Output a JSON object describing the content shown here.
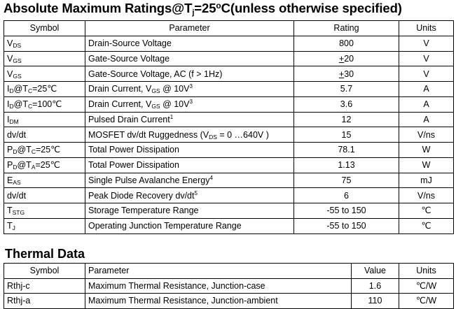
{
  "section1": {
    "title_pre": "Absolute Maximum Ratings@T",
    "title_sub": "j",
    "title_mid": "=25",
    "title_sup": "o",
    "title_post": "C(unless otherwise specified)",
    "headers": {
      "symbol": "Symbol",
      "parameter": "Parameter",
      "rating": "Rating",
      "units": "Units"
    },
    "rows": [
      {
        "sym": "V",
        "sym_sub": "DS",
        "sym_post": "",
        "param": "Drain-Source Voltage",
        "rating": "800",
        "unit": "V"
      },
      {
        "sym": "V",
        "sym_sub": "GS",
        "sym_post": "",
        "param": "Gate-Source Voltage",
        "rating_prefix": "+",
        "rating": "20",
        "unit": "V"
      },
      {
        "sym": "V",
        "sym_sub": "GS",
        "sym_post": "",
        "param": "Gate-Source Voltage, AC (f > 1Hz)",
        "rating_prefix": "+",
        "rating": "30",
        "unit": "V"
      },
      {
        "sym": "I",
        "sym_sub": "D",
        "sym_mid": "@T",
        "sym_sub2": "C",
        "sym_post": "=25℃",
        "param_pre": "Drain Current, V",
        "param_sub": "GS",
        "param_post": " @ 10V",
        "param_sup": "3",
        "rating": "5.7",
        "unit": "A"
      },
      {
        "sym": "I",
        "sym_sub": "D",
        "sym_mid": "@T",
        "sym_sub2": "C",
        "sym_post": "=100℃",
        "param_pre": "Drain Current, V",
        "param_sub": "GS",
        "param_post": " @ 10V",
        "param_sup": "3",
        "rating": "3.6",
        "unit": "A"
      },
      {
        "sym": "I",
        "sym_sub": "DM",
        "sym_post": "",
        "param": "Pulsed Drain Current",
        "param_sup": "1",
        "rating": "12",
        "unit": "A"
      },
      {
        "sym": "dv/dt",
        "sym_sub": "",
        "sym_post": "",
        "param_pre": "MOSFET dv/dt Ruggedness (V",
        "param_sub": "DS",
        "param_post": " = 0 …640V )",
        "rating": "15",
        "unit": "V/ns"
      },
      {
        "sym": "P",
        "sym_sub": "D",
        "sym_mid": "@T",
        "sym_sub2": "C",
        "sym_post": "=25℃",
        "param": "Total Power Dissipation",
        "rating": "78.1",
        "unit": "W"
      },
      {
        "sym": "P",
        "sym_sub": "D",
        "sym_mid": "@T",
        "sym_sub2": "A",
        "sym_post": "=25℃",
        "param": "Total Power Dissipation",
        "rating": "1.13",
        "unit": "W"
      },
      {
        "sym": "E",
        "sym_sub": "AS",
        "sym_post": "",
        "param": "Single Pulse Avalanche Energy",
        "param_sup": "4",
        "rating": "75",
        "unit": "mJ"
      },
      {
        "sym": "dv/dt",
        "sym_sub": "",
        "sym_post": "",
        "param": "Peak Diode Recovery dv/dt",
        "param_sup": "5",
        "rating": "6",
        "unit": "V/ns"
      },
      {
        "sym": "T",
        "sym_sub": "STG",
        "sym_post": "",
        "param": "Storage Temperature Range",
        "rating": "-55 to 150",
        "unit": "℃"
      },
      {
        "sym": "T",
        "sym_sub": "J",
        "sym_post": "",
        "param": "Operating Junction Temperature Range",
        "rating": "-55 to 150",
        "unit": "℃"
      }
    ]
  },
  "section2": {
    "title": "Thermal Data",
    "headers": {
      "symbol": "Symbol",
      "parameter": "Parameter",
      "value": "Value",
      "units": "Units"
    },
    "rows": [
      {
        "sym": "Rthj-c",
        "param": "Maximum Thermal Resistance, Junction-case",
        "value": "1.6",
        "unit": "℃/W"
      },
      {
        "sym": "Rthj-a",
        "param": "Maximum Thermal Resistance, Junction-ambient",
        "value": "110",
        "unit": "℃/W"
      }
    ]
  }
}
